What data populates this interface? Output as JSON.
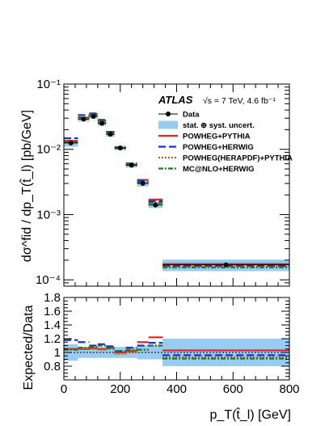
{
  "chart_data": {
    "type": "scatter",
    "experiment": "ATLAS",
    "energy_label": "√s = 7 TeV, 4.6 fb⁻¹",
    "xlabel": "p_T(t̂_l) [GeV]",
    "ylabel_top": "dσ^fid / dp_T(t̂_l) [pb/GeV]",
    "ylabel_ratio": "Expected/Data",
    "xlim": [
      0,
      800
    ],
    "ylim": [
      8e-05,
      0.1
    ],
    "yscale": "log",
    "ratio_ylim": [
      0.6,
      1.8
    ],
    "x_ticks": [
      "0",
      "200",
      "400",
      "600",
      "800"
    ],
    "y_ticks": [
      "10⁻⁴",
      "10⁻³",
      "10⁻²",
      "10⁻¹"
    ],
    "ratio_ticks": [
      "0.6",
      "0.8",
      "1",
      "1.2",
      "1.4",
      "1.6",
      "1.8"
    ],
    "legend_placement": "top-right",
    "bins": [
      [
        0,
        50
      ],
      [
        50,
        90
      ],
      [
        90,
        120
      ],
      [
        120,
        150
      ],
      [
        150,
        180
      ],
      [
        180,
        220
      ],
      [
        220,
        260
      ],
      [
        260,
        300
      ],
      [
        300,
        350
      ],
      [
        350,
        800
      ]
    ],
    "data_x": [
      25,
      70,
      105,
      135,
      165,
      200,
      240,
      280,
      325,
      575
    ],
    "data_y": [
      0.0125,
      0.029,
      0.032,
      0.025,
      0.017,
      0.0105,
      0.0057,
      0.003,
      0.0014,
      0.00017
    ],
    "band_rel": [
      0.12,
      0.08,
      0.08,
      0.08,
      0.08,
      0.08,
      0.08,
      0.1,
      0.1,
      0.2
    ],
    "series": [
      {
        "name": "POWHEG+PYTHIA",
        "color": "#e8211d",
        "style": "solid",
        "values": [
          0.0135,
          0.0305,
          0.0345,
          0.0272,
          0.0185,
          0.0105,
          0.0058,
          0.0034,
          0.0017,
          0.000175
        ],
        "ratio": [
          1.05,
          1.05,
          1.06,
          1.05,
          1.07,
          1.0,
          1.02,
          1.15,
          1.22,
          1.03
        ]
      },
      {
        "name": "POWHEG+HERWIG",
        "color": "#1530d8",
        "style": "dash",
        "values": [
          0.0148,
          0.0335,
          0.0355,
          0.0283,
          0.0185,
          0.0107,
          0.0061,
          0.0033,
          0.0016,
          0.000163
        ],
        "ratio": [
          1.18,
          1.15,
          1.1,
          1.12,
          1.09,
          1.02,
          1.07,
          1.1,
          1.14,
          0.96
        ]
      },
      {
        "name": "POWHEG(HERAPDF)+PYTHIA",
        "color": "#b5651d",
        "style": "dot",
        "values": [
          0.0132,
          0.0305,
          0.0335,
          0.0262,
          0.0178,
          0.0103,
          0.0057,
          0.0031,
          0.0015,
          0.000158
        ],
        "ratio": [
          1.05,
          1.05,
          1.05,
          1.04,
          1.05,
          0.98,
          1.0,
          1.04,
          1.1,
          0.93
        ]
      },
      {
        "name": "MC@NLO+HERWIG",
        "color": "#1d7a1d",
        "style": "dashdot",
        "values": [
          0.013,
          0.031,
          0.0345,
          0.0275,
          0.018,
          0.0106,
          0.006,
          0.0031,
          0.0015,
          0.000155
        ],
        "ratio": [
          1.04,
          1.07,
          1.08,
          1.1,
          1.06,
          1.02,
          1.04,
          1.04,
          1.1,
          0.91
        ]
      }
    ],
    "legend_entries": [
      "Data",
      "stat. ⊕ syst. uncert.",
      "POWHEG+PYTHIA",
      "POWHEG+HERWIG",
      "POWHEG(HERAPDF)+PYTHIA",
      "MC@NLO+HERWIG"
    ],
    "colors": {
      "band": "#99ccf2",
      "data": "#000000"
    }
  }
}
